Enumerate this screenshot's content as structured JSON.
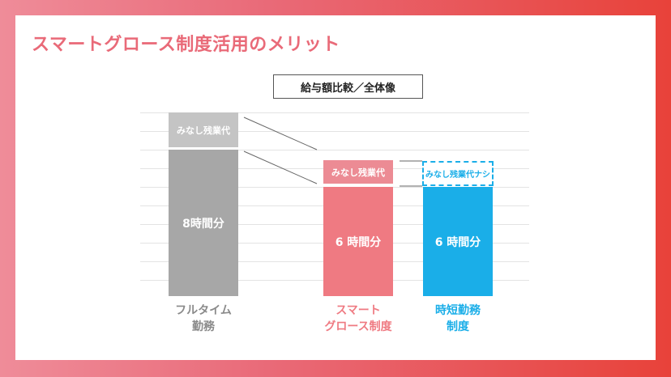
{
  "slide": {
    "title": "スマートグロース制度活用のメリット",
    "subtitle": "給与額比較／全体像"
  },
  "colors": {
    "gray": "#a7a7a7",
    "gray_light": "#c4c4c4",
    "pink": "#ef7a82",
    "pink_light": "#ec8b94",
    "blue": "#1aaee8",
    "title": "#e96a78"
  },
  "columns": [
    {
      "name": "フルタイム\n勤務",
      "line1": "フルタイム",
      "line2": "勤務",
      "top_label": "みなし残業代",
      "main_label": "8時間分"
    },
    {
      "name": "スマート\nグロース制度",
      "line1": "スマート",
      "line2": "グロース制度",
      "top_label": "みなし残業代",
      "main_label": "6 時間分"
    },
    {
      "name": "時短勤務\n制度",
      "line1": "時短勤務",
      "line2": "制度",
      "top_label": "みなし残業代ナシ",
      "main_label": "6 時間分"
    }
  ]
}
